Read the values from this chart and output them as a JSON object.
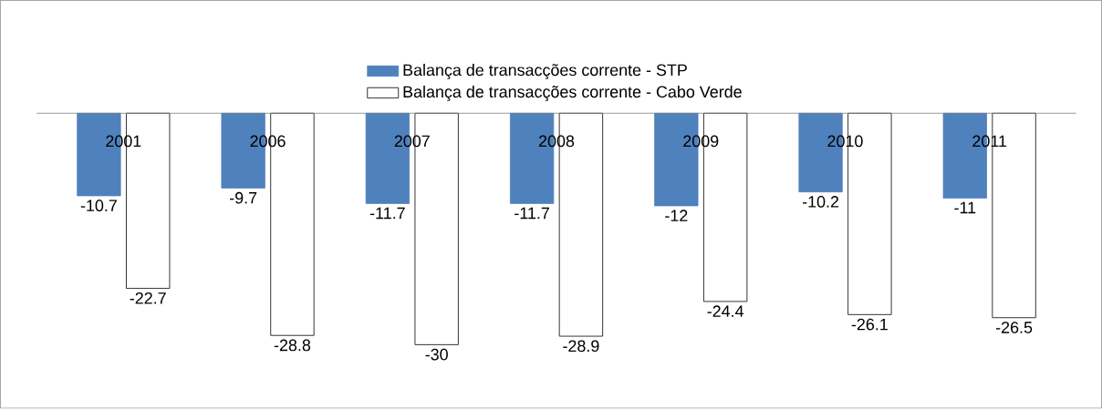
{
  "chart_data": {
    "type": "bar",
    "categories": [
      "2001",
      "2006",
      "2007",
      "2008",
      "2009",
      "2010",
      "2011"
    ],
    "series": [
      {
        "name": "Balança de transacções corrente - STP",
        "color": "#4f81bd",
        "values": [
          -10.7,
          -9.7,
          -11.7,
          -11.7,
          -12,
          -10.2,
          -11
        ]
      },
      {
        "name": "Balança de transacções corrente - Cabo Verde",
        "color": "#ffffff",
        "values": [
          -22.7,
          -28.8,
          -30,
          -28.9,
          -24.4,
          -26.1,
          -26.5
        ]
      }
    ],
    "data_labels": true,
    "legend": "top",
    "tick_labels": "x"
  }
}
